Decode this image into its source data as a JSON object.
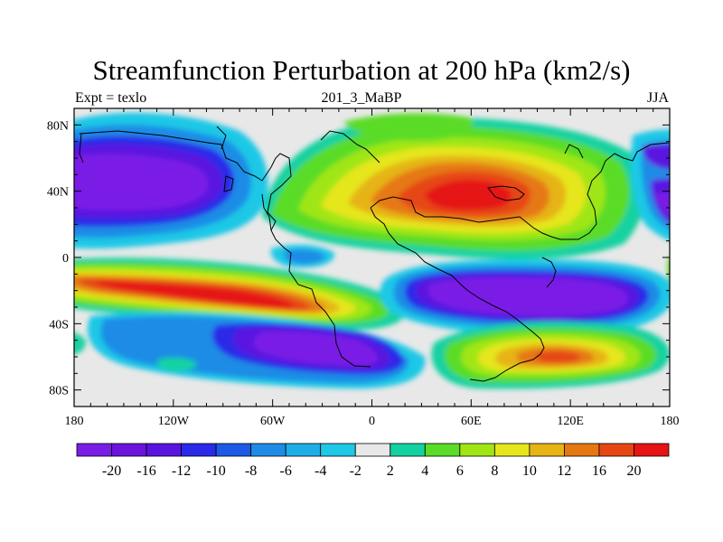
{
  "title": "Streamfunction Perturbation at 200 hPa (km2/s)",
  "subtitle_left": "Expt = texlo",
  "subtitle_center": "201_3_MaBP",
  "subtitle_right": "JJA",
  "x_ticks": [
    "180",
    "120W",
    "60W",
    "0",
    "60E",
    "120E",
    "180"
  ],
  "y_ticks": [
    "80N",
    "40N",
    "0",
    "40S",
    "80S"
  ],
  "colorbar": {
    "colors": [
      "#7a1ee6",
      "#6a14dc",
      "#5a14e0",
      "#2a2ae8",
      "#1e5ae6",
      "#1e8ce6",
      "#1eaee6",
      "#1ec8e6",
      "#e8e8e8",
      "#14d2a0",
      "#5adc28",
      "#a0e614",
      "#e6e61e",
      "#e6b414",
      "#e67814",
      "#e64614",
      "#e61414"
    ],
    "labels": [
      "-20",
      "-16",
      "-12",
      "-10",
      "-8",
      "-6",
      "-4",
      "-2",
      "2",
      "4",
      "6",
      "8",
      "10",
      "12",
      "16",
      "20"
    ]
  },
  "chart_data": {
    "type": "heatmap",
    "title": "Streamfunction Perturbation at 200 hPa (km2/s)",
    "x_range": [
      -180,
      180
    ],
    "y_range": [
      -90,
      90
    ],
    "levels": [
      -20,
      -16,
      -12,
      -10,
      -8,
      -6,
      -4,
      -2,
      2,
      4,
      6,
      8,
      10,
      12,
      16,
      20
    ],
    "features": [
      {
        "name": "north-america-low",
        "lon": -130,
        "lat": 40,
        "value": -20
      },
      {
        "name": "asia-high",
        "lon": 60,
        "lat": 35,
        "value": 16
      },
      {
        "name": "south-pacific-high",
        "lon": -110,
        "lat": -25,
        "value": 20
      },
      {
        "name": "indian-ocean-low",
        "lon": 80,
        "lat": -25,
        "value": -20
      },
      {
        "name": "south-atlantic-low",
        "lon": -35,
        "lat": -55,
        "value": -16
      },
      {
        "name": "australia-south-high",
        "lon": 100,
        "lat": -50,
        "value": 16
      },
      {
        "name": "east-pacific-low",
        "lon": 170,
        "lat": 30,
        "value": -16
      }
    ]
  }
}
